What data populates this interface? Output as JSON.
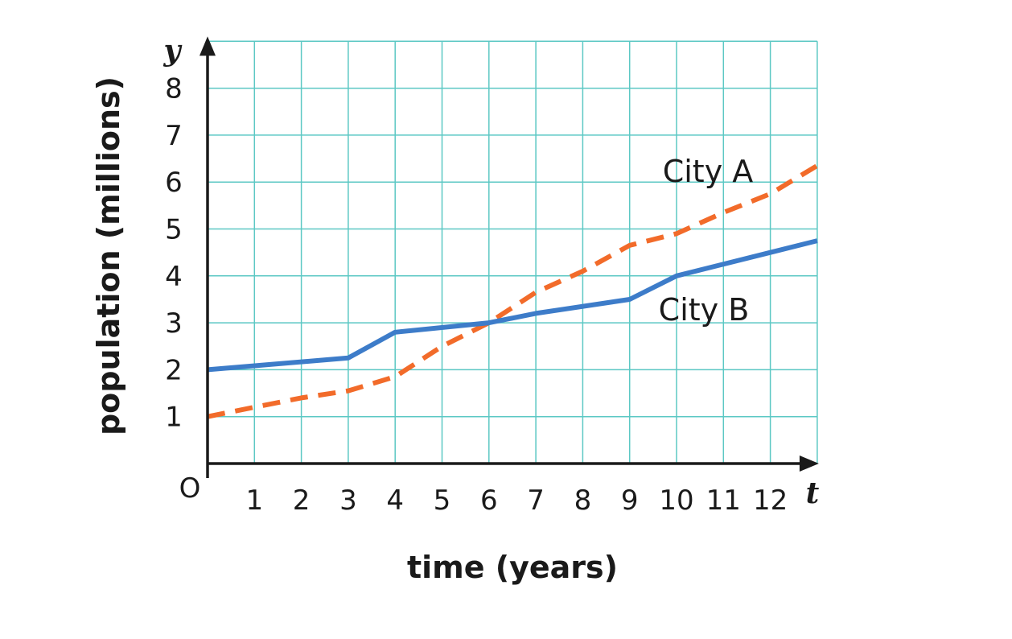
{
  "chart_data": {
    "type": "line",
    "title": "",
    "xlabel": "time (years)",
    "ylabel": "population (millions)",
    "x_axis_variable": "t",
    "y_axis_variable": "y",
    "origin_label": "O",
    "xlim": [
      0,
      13
    ],
    "ylim": [
      0,
      9
    ],
    "x_ticks": [
      1,
      2,
      3,
      4,
      5,
      6,
      7,
      8,
      9,
      10,
      11,
      12
    ],
    "y_ticks": [
      1,
      2,
      3,
      4,
      5,
      6,
      7,
      8
    ],
    "grid": true,
    "series": [
      {
        "name": "City A",
        "style": "dashed",
        "color": "#f26b2a",
        "points": [
          [
            0,
            1.0
          ],
          [
            1,
            1.2
          ],
          [
            2,
            1.4
          ],
          [
            3,
            1.55
          ],
          [
            4,
            1.85
          ],
          [
            5,
            2.5
          ],
          [
            6,
            3.0
          ],
          [
            7,
            3.65
          ],
          [
            8,
            4.1
          ],
          [
            9,
            4.65
          ],
          [
            10,
            4.9
          ],
          [
            11,
            5.35
          ],
          [
            12,
            5.75
          ],
          [
            13,
            6.35
          ]
        ]
      },
      {
        "name": "City B",
        "style": "solid",
        "color": "#3d7cc9",
        "points": [
          [
            0,
            2.0
          ],
          [
            3,
            2.25
          ],
          [
            4,
            2.8
          ],
          [
            6,
            3.0
          ],
          [
            7,
            3.2
          ],
          [
            9,
            3.5
          ],
          [
            10,
            4.0
          ],
          [
            12,
            4.5
          ],
          [
            13,
            4.75
          ]
        ]
      }
    ]
  }
}
